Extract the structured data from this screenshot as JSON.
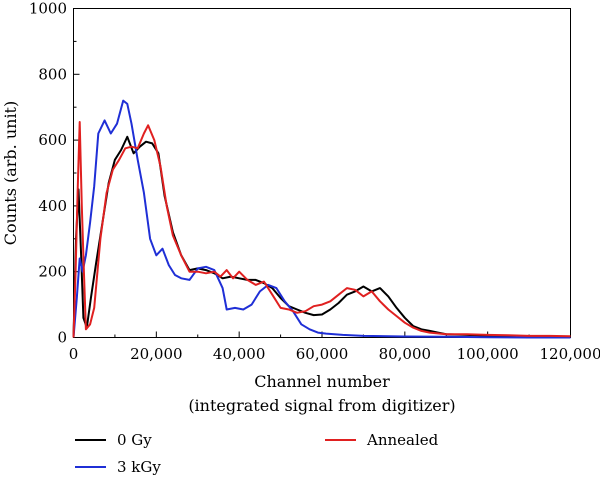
{
  "chart_data": {
    "type": "line",
    "title": "",
    "xlabel": "Channel number",
    "xlabel_sub": "(integrated signal from digitizer)",
    "ylabel": "Counts (arb. unit)",
    "xlim": [
      0,
      120000
    ],
    "ylim": [
      0,
      1000
    ],
    "x_ticks": [
      0,
      20000,
      40000,
      60000,
      80000,
      100000,
      120000
    ],
    "x_tick_labels": [
      "0",
      "20,000",
      "40,000",
      "60,000",
      "80,000",
      "100,000",
      "120,000"
    ],
    "y_ticks": [
      0,
      200,
      400,
      600,
      800,
      1000
    ],
    "y_tick_labels": [
      "0",
      "200",
      "400",
      "600",
      "800",
      "1000"
    ],
    "grid": false,
    "legend_position": "bottom",
    "series": [
      {
        "name": "0 Gy",
        "color": "#000000",
        "points": [
          [
            0,
            0
          ],
          [
            600,
            300
          ],
          [
            1200,
            450
          ],
          [
            1800,
            260
          ],
          [
            2400,
            60
          ],
          [
            3200,
            30
          ],
          [
            4200,
            120
          ],
          [
            5500,
            230
          ],
          [
            7000,
            350
          ],
          [
            8500,
            470
          ],
          [
            10000,
            540
          ],
          [
            11500,
            570
          ],
          [
            13000,
            610
          ],
          [
            14500,
            560
          ],
          [
            16000,
            580
          ],
          [
            17500,
            595
          ],
          [
            19000,
            590
          ],
          [
            20500,
            560
          ],
          [
            22000,
            430
          ],
          [
            24000,
            320
          ],
          [
            26000,
            250
          ],
          [
            28000,
            205
          ],
          [
            30000,
            210
          ],
          [
            32000,
            205
          ],
          [
            34000,
            195
          ],
          [
            36000,
            180
          ],
          [
            38000,
            185
          ],
          [
            40000,
            180
          ],
          [
            42000,
            175
          ],
          [
            44000,
            175
          ],
          [
            46000,
            165
          ],
          [
            48000,
            150
          ],
          [
            50000,
            120
          ],
          [
            52000,
            95
          ],
          [
            54000,
            85
          ],
          [
            56000,
            75
          ],
          [
            58000,
            68
          ],
          [
            60000,
            70
          ],
          [
            62000,
            85
          ],
          [
            64000,
            105
          ],
          [
            66000,
            130
          ],
          [
            68000,
            140
          ],
          [
            70000,
            155
          ],
          [
            72000,
            140
          ],
          [
            74000,
            150
          ],
          [
            76000,
            125
          ],
          [
            78000,
            90
          ],
          [
            80000,
            60
          ],
          [
            82000,
            35
          ],
          [
            84000,
            25
          ],
          [
            86000,
            20
          ],
          [
            88000,
            15
          ],
          [
            90000,
            10
          ],
          [
            95000,
            8
          ],
          [
            100000,
            5
          ],
          [
            105000,
            5
          ],
          [
            110000,
            3
          ],
          [
            115000,
            2
          ],
          [
            120000,
            0
          ]
        ]
      },
      {
        "name": "3 kGy",
        "color": "#1f2fd6",
        "points": [
          [
            0,
            0
          ],
          [
            800,
            120
          ],
          [
            1500,
            240
          ],
          [
            2200,
            200
          ],
          [
            3000,
            250
          ],
          [
            4000,
            350
          ],
          [
            5000,
            460
          ],
          [
            6000,
            620
          ],
          [
            7500,
            660
          ],
          [
            9000,
            620
          ],
          [
            10500,
            650
          ],
          [
            12000,
            720
          ],
          [
            13000,
            710
          ],
          [
            14000,
            650
          ],
          [
            15500,
            540
          ],
          [
            17000,
            440
          ],
          [
            18500,
            300
          ],
          [
            20000,
            250
          ],
          [
            21500,
            270
          ],
          [
            23000,
            220
          ],
          [
            24500,
            190
          ],
          [
            26000,
            180
          ],
          [
            28000,
            175
          ],
          [
            30000,
            210
          ],
          [
            32000,
            215
          ],
          [
            34000,
            205
          ],
          [
            36000,
            150
          ],
          [
            37000,
            85
          ],
          [
            39000,
            90
          ],
          [
            41000,
            85
          ],
          [
            43000,
            100
          ],
          [
            45000,
            140
          ],
          [
            47000,
            160
          ],
          [
            49000,
            150
          ],
          [
            51000,
            110
          ],
          [
            53000,
            80
          ],
          [
            55000,
            40
          ],
          [
            57000,
            25
          ],
          [
            59000,
            15
          ],
          [
            61000,
            12
          ],
          [
            65000,
            8
          ],
          [
            70000,
            5
          ],
          [
            80000,
            3
          ],
          [
            90000,
            2
          ],
          [
            100000,
            1
          ],
          [
            110000,
            0
          ],
          [
            120000,
            0
          ]
        ]
      },
      {
        "name": "Annealed",
        "color": "#e02020",
        "points": [
          [
            0,
            0
          ],
          [
            500,
            200
          ],
          [
            1000,
            440
          ],
          [
            1500,
            655
          ],
          [
            2000,
            400
          ],
          [
            2500,
            200
          ],
          [
            3000,
            25
          ],
          [
            4000,
            40
          ],
          [
            5000,
            90
          ],
          [
            6500,
            300
          ],
          [
            8000,
            440
          ],
          [
            9500,
            510
          ],
          [
            11000,
            540
          ],
          [
            12500,
            575
          ],
          [
            14000,
            580
          ],
          [
            15500,
            575
          ],
          [
            17000,
            620
          ],
          [
            18000,
            645
          ],
          [
            19500,
            600
          ],
          [
            21000,
            520
          ],
          [
            22500,
            400
          ],
          [
            24000,
            310
          ],
          [
            26000,
            250
          ],
          [
            28000,
            200
          ],
          [
            30000,
            200
          ],
          [
            32000,
            195
          ],
          [
            34000,
            200
          ],
          [
            35500,
            185
          ],
          [
            37000,
            205
          ],
          [
            38500,
            180
          ],
          [
            40000,
            200
          ],
          [
            42000,
            175
          ],
          [
            44000,
            160
          ],
          [
            46000,
            170
          ],
          [
            48000,
            130
          ],
          [
            50000,
            90
          ],
          [
            52000,
            85
          ],
          [
            54000,
            75
          ],
          [
            56000,
            80
          ],
          [
            58000,
            95
          ],
          [
            60000,
            100
          ],
          [
            62000,
            110
          ],
          [
            64000,
            130
          ],
          [
            66000,
            150
          ],
          [
            68000,
            145
          ],
          [
            70000,
            125
          ],
          [
            72000,
            140
          ],
          [
            74000,
            110
          ],
          [
            76000,
            85
          ],
          [
            78000,
            65
          ],
          [
            80000,
            45
          ],
          [
            82000,
            30
          ],
          [
            84000,
            20
          ],
          [
            86000,
            15
          ],
          [
            90000,
            10
          ],
          [
            95000,
            10
          ],
          [
            100000,
            8
          ],
          [
            105000,
            7
          ],
          [
            110000,
            5
          ],
          [
            115000,
            5
          ],
          [
            120000,
            4
          ]
        ]
      }
    ]
  }
}
